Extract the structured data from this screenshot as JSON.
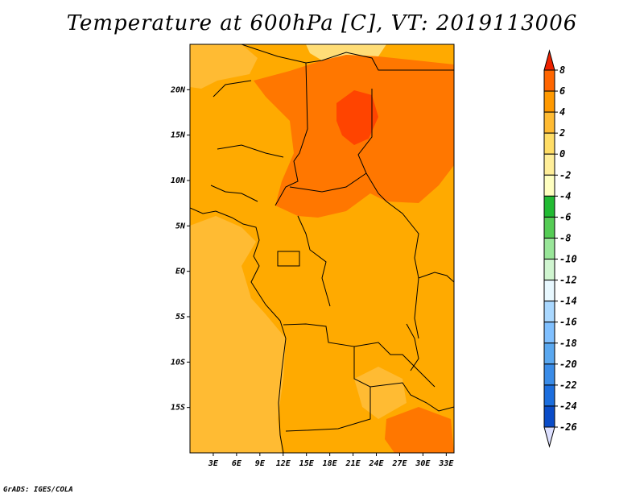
{
  "title": "Temperature at 600hPa [C], VT: 2019113006",
  "footer": "GrADS: IGES/COLA",
  "map": {
    "lon_range": [
      0,
      34
    ],
    "lat_range": [
      -20,
      25
    ],
    "lon_ticks": [
      {
        "value": 3,
        "label": "3E"
      },
      {
        "value": 6,
        "label": "6E"
      },
      {
        "value": 9,
        "label": "9E"
      },
      {
        "value": 12,
        "label": "12E"
      },
      {
        "value": 15,
        "label": "15E"
      },
      {
        "value": 18,
        "label": "18E"
      },
      {
        "value": 21,
        "label": "21E"
      },
      {
        "value": 24,
        "label": "24E"
      },
      {
        "value": 27,
        "label": "27E"
      },
      {
        "value": 30,
        "label": "30E"
      },
      {
        "value": 33,
        "label": "33E"
      }
    ],
    "lat_ticks": [
      {
        "value": 20,
        "label": "20N"
      },
      {
        "value": 15,
        "label": "15N"
      },
      {
        "value": 10,
        "label": "10N"
      },
      {
        "value": 5,
        "label": "5N"
      },
      {
        "value": 0,
        "label": "EQ"
      },
      {
        "value": -5,
        "label": "5S"
      },
      {
        "value": -10,
        "label": "10S"
      },
      {
        "value": -15,
        "label": "15S"
      }
    ]
  },
  "colorbar": {
    "labels": [
      "8",
      "6",
      "4",
      "2",
      "0",
      "-2",
      "-4",
      "-6",
      "-8",
      "-10",
      "-12",
      "-14",
      "-16",
      "-18",
      "-20",
      "-22",
      "-24",
      "-26"
    ],
    "colors": [
      "#ff3300",
      "#ff6600",
      "#ff9900",
      "#ffbb33",
      "#ffdd66",
      "#ffee99",
      "#ffffc0",
      "#22bb33",
      "#55cc55",
      "#99e699",
      "#d0f5d0",
      "#e8f8ff",
      "#aad8ff",
      "#80c0ff",
      "#5aa8f0",
      "#3a8ce8",
      "#1c6ede",
      "#0a4cc8",
      "#0033aa",
      "#001a77"
    ],
    "top_arrow_color": "#ee2200",
    "bottom_arrow_color": "#dde0ff"
  },
  "field_colors": {
    "bg_2_4": "#ffaa00",
    "light_0_2": "#ffbb33",
    "band_4_6": "#ff7700",
    "core_6_8": "#ff4400",
    "pale_north": "#ffdd77"
  }
}
